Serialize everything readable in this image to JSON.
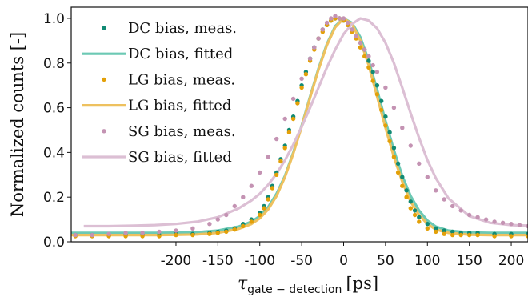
{
  "chart_data": {
    "type": "scatter",
    "title": "",
    "xlabel": "τ",
    "xlabel_subscript": "gate − detection",
    "xlabel_unit": "[ps]",
    "ylabel": "Normalized counts [-]",
    "xlim": [
      -325,
      220
    ],
    "ylim": [
      0.0,
      1.05
    ],
    "xticks": [
      -200,
      -150,
      -100,
      -50,
      0,
      50,
      100,
      150,
      200
    ],
    "xtick_labels": [
      "-200",
      "-150",
      "-100",
      "-50",
      "0",
      "50",
      "100",
      "150",
      "200"
    ],
    "yticks": [
      0.0,
      0.2,
      0.4,
      0.6,
      0.8,
      1.0
    ],
    "ytick_labels": [
      "0.0",
      "0.2",
      "0.4",
      "0.6",
      "0.8",
      "1.0"
    ],
    "grid": false,
    "legend_position": "top-left",
    "series": [
      {
        "name": "DC bias, meas.",
        "kind": "scatter",
        "color": "#118a74",
        "x": [
          -320,
          -300,
          -280,
          -260,
          -240,
          -220,
          -200,
          -180,
          -160,
          -150,
          -140,
          -130,
          -120,
          -110,
          -100,
          -95,
          -90,
          -85,
          -80,
          -75,
          -70,
          -65,
          -60,
          -55,
          -50,
          -45,
          -40,
          -35,
          -30,
          -25,
          -20,
          -15,
          -10,
          -5,
          0,
          5,
          10,
          15,
          20,
          25,
          30,
          35,
          40,
          45,
          50,
          55,
          60,
          65,
          70,
          75,
          80,
          85,
          90,
          100,
          110,
          120,
          130,
          140,
          150,
          160,
          180,
          200,
          220
        ],
        "y": [
          0.03,
          0.03,
          0.03,
          0.03,
          0.03,
          0.03,
          0.035,
          0.035,
          0.04,
          0.045,
          0.05,
          0.06,
          0.08,
          0.1,
          0.13,
          0.16,
          0.2,
          0.25,
          0.31,
          0.37,
          0.43,
          0.5,
          0.56,
          0.63,
          0.7,
          0.76,
          0.82,
          0.87,
          0.91,
          0.95,
          0.97,
          0.99,
          1.0,
          1.0,
          0.99,
          0.97,
          0.95,
          0.92,
          0.89,
          0.86,
          0.81,
          0.76,
          0.7,
          0.63,
          0.56,
          0.49,
          0.42,
          0.35,
          0.29,
          0.23,
          0.18,
          0.14,
          0.11,
          0.08,
          0.06,
          0.05,
          0.045,
          0.04,
          0.04,
          0.04,
          0.035,
          0.035,
          0.035
        ]
      },
      {
        "name": "DC bias, fitted",
        "kind": "line",
        "color": "#6cc9b4",
        "x": [
          -325,
          -300,
          -275,
          -250,
          -225,
          -200,
          -175,
          -150,
          -125,
          -110,
          -100,
          -90,
          -80,
          -70,
          -60,
          -50,
          -40,
          -30,
          -20,
          -10,
          0,
          10,
          20,
          30,
          40,
          50,
          60,
          70,
          80,
          90,
          100,
          110,
          125,
          150,
          175,
          200,
          220
        ],
        "y": [
          0.04,
          0.04,
          0.04,
          0.04,
          0.04,
          0.041,
          0.043,
          0.05,
          0.068,
          0.09,
          0.115,
          0.155,
          0.215,
          0.295,
          0.4,
          0.52,
          0.65,
          0.775,
          0.885,
          0.965,
          1.0,
          0.98,
          0.915,
          0.81,
          0.68,
          0.54,
          0.41,
          0.295,
          0.205,
          0.14,
          0.095,
          0.068,
          0.05,
          0.042,
          0.04,
          0.04,
          0.04
        ]
      },
      {
        "name": "LG bias, meas.",
        "kind": "scatter",
        "color": "#e3a008",
        "x": [
          -320,
          -300,
          -280,
          -260,
          -240,
          -220,
          -200,
          -180,
          -160,
          -150,
          -140,
          -130,
          -120,
          -110,
          -100,
          -95,
          -90,
          -85,
          -80,
          -75,
          -70,
          -65,
          -60,
          -55,
          -50,
          -45,
          -40,
          -35,
          -30,
          -25,
          -20,
          -15,
          -10,
          -5,
          0,
          5,
          10,
          15,
          20,
          25,
          30,
          35,
          40,
          45,
          50,
          55,
          60,
          65,
          70,
          75,
          80,
          85,
          90,
          100,
          110,
          120,
          130,
          140,
          150,
          160,
          180,
          200,
          220
        ],
        "y": [
          0.025,
          0.025,
          0.025,
          0.025,
          0.025,
          0.025,
          0.03,
          0.03,
          0.035,
          0.04,
          0.045,
          0.055,
          0.07,
          0.09,
          0.12,
          0.15,
          0.19,
          0.24,
          0.3,
          0.36,
          0.42,
          0.49,
          0.55,
          0.62,
          0.69,
          0.75,
          0.81,
          0.86,
          0.91,
          0.94,
          0.97,
          0.99,
          1.0,
          1.0,
          0.99,
          0.97,
          0.94,
          0.91,
          0.87,
          0.83,
          0.78,
          0.72,
          0.66,
          0.59,
          0.52,
          0.45,
          0.38,
          0.31,
          0.25,
          0.2,
          0.15,
          0.12,
          0.09,
          0.06,
          0.045,
          0.035,
          0.03,
          0.03,
          0.03,
          0.03,
          0.025,
          0.025,
          0.025
        ]
      },
      {
        "name": "LG bias, fitted",
        "kind": "line",
        "color": "#eec15f",
        "x": [
          -325,
          -300,
          -275,
          -250,
          -225,
          -200,
          -175,
          -150,
          -125,
          -110,
          -100,
          -90,
          -80,
          -70,
          -60,
          -50,
          -40,
          -30,
          -20,
          -10,
          0,
          10,
          20,
          30,
          40,
          50,
          60,
          70,
          80,
          90,
          100,
          110,
          125,
          150,
          175,
          200,
          220
        ],
        "y": [
          0.03,
          0.03,
          0.03,
          0.03,
          0.03,
          0.031,
          0.033,
          0.04,
          0.058,
          0.08,
          0.105,
          0.145,
          0.205,
          0.29,
          0.395,
          0.515,
          0.645,
          0.77,
          0.88,
          0.96,
          1.0,
          0.975,
          0.9,
          0.79,
          0.65,
          0.51,
          0.38,
          0.27,
          0.18,
          0.12,
          0.08,
          0.055,
          0.04,
          0.032,
          0.03,
          0.03,
          0.03
        ]
      },
      {
        "name": "SG bias, meas.",
        "kind": "scatter",
        "color": "#c493b3",
        "x": [
          -320,
          -300,
          -280,
          -260,
          -240,
          -220,
          -200,
          -180,
          -160,
          -150,
          -140,
          -130,
          -120,
          -110,
          -100,
          -90,
          -80,
          -70,
          -60,
          -50,
          -40,
          -35,
          -30,
          -25,
          -20,
          -15,
          -10,
          -5,
          0,
          5,
          10,
          15,
          20,
          25,
          30,
          35,
          40,
          50,
          60,
          70,
          80,
          90,
          100,
          110,
          120,
          130,
          140,
          150,
          160,
          170,
          180,
          190,
          200,
          210,
          220
        ],
        "y": [
          0.03,
          0.03,
          0.035,
          0.04,
          0.04,
          0.045,
          0.05,
          0.06,
          0.08,
          0.1,
          0.12,
          0.16,
          0.2,
          0.25,
          0.31,
          0.38,
          0.46,
          0.55,
          0.64,
          0.73,
          0.82,
          0.87,
          0.91,
          0.95,
          0.98,
          1.0,
          1.01,
          1.0,
          1.0,
          0.98,
          0.95,
          0.92,
          0.89,
          0.86,
          0.83,
          0.79,
          0.76,
          0.69,
          0.6,
          0.51,
          0.43,
          0.35,
          0.29,
          0.23,
          0.19,
          0.16,
          0.14,
          0.12,
          0.11,
          0.1,
          0.09,
          0.085,
          0.08,
          0.075,
          0.07
        ]
      },
      {
        "name": "SG bias, fitted",
        "kind": "line",
        "color": "#dcbfd4",
        "x": [
          -310,
          -280,
          -250,
          -225,
          -200,
          -175,
          -150,
          -125,
          -110,
          -100,
          -90,
          -80,
          -70,
          -60,
          -50,
          -40,
          -30,
          -20,
          -10,
          0,
          10,
          20,
          30,
          40,
          50,
          60,
          70,
          80,
          90,
          100,
          110,
          125,
          150,
          175,
          200,
          220
        ],
        "y": [
          0.07,
          0.07,
          0.072,
          0.075,
          0.08,
          0.09,
          0.11,
          0.15,
          0.185,
          0.215,
          0.255,
          0.305,
          0.365,
          0.435,
          0.515,
          0.6,
          0.69,
          0.78,
          0.86,
          0.93,
          0.975,
          1.0,
          0.99,
          0.955,
          0.89,
          0.8,
          0.69,
          0.575,
          0.465,
          0.365,
          0.285,
          0.195,
          0.115,
          0.085,
          0.075,
          0.072
        ]
      }
    ]
  }
}
